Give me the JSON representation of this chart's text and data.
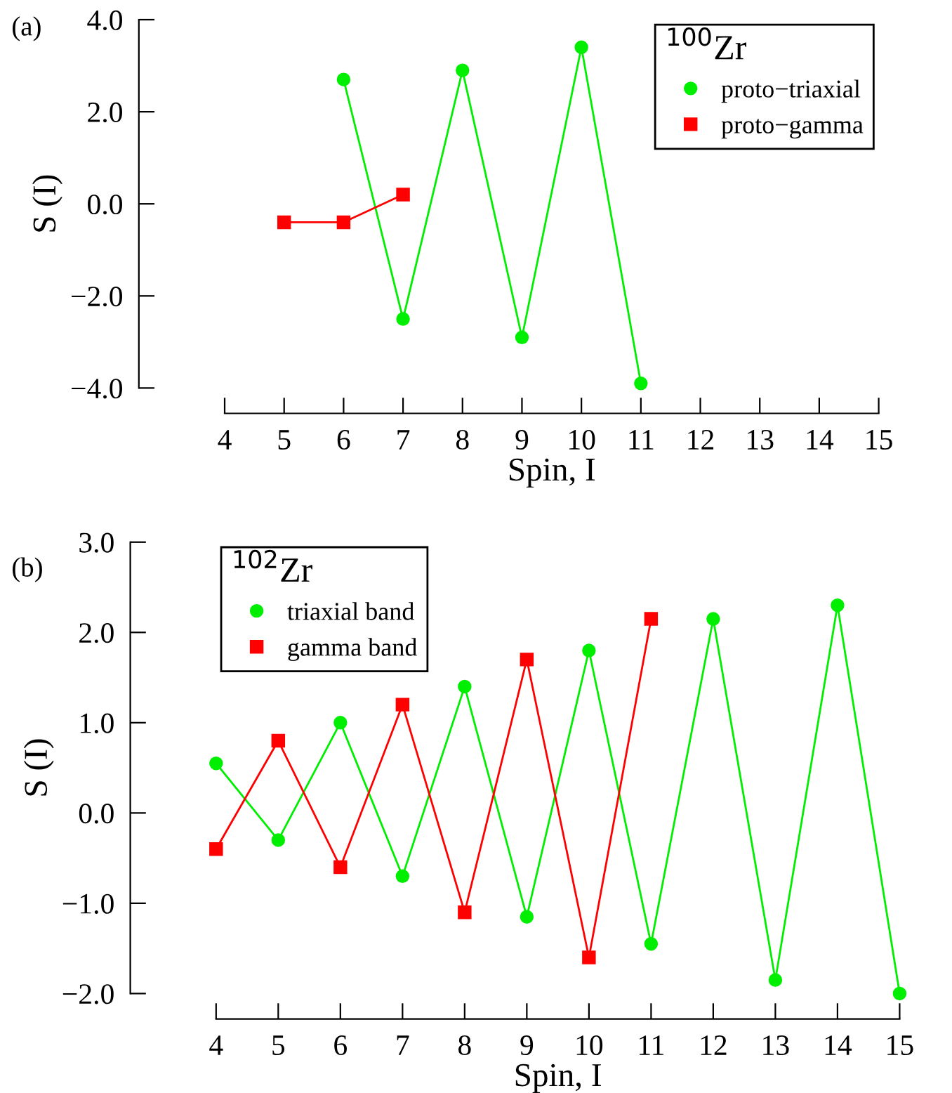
{
  "chart_data": [
    {
      "type": "line",
      "xlabel": "Spin, I",
      "ylabel": "S (I)",
      "legend_title": "$^{100}$Zr",
      "annotations": [
        "(a)"
      ],
      "legend": "top right",
      "grid": false,
      "xlim": [
        4,
        15
      ],
      "xticks": [
        4,
        5,
        6,
        7,
        8,
        9,
        10,
        11,
        12,
        13,
        14,
        15
      ],
      "ylim": [
        -4,
        4
      ],
      "yticks": [
        {
          "value": -4,
          "label": "−4.0"
        },
        {
          "value": -2,
          "label": "−2.0"
        },
        {
          "value": 0,
          "label": "0.0"
        },
        {
          "value": 2,
          "label": "2.0"
        },
        {
          "value": 4,
          "label": "4.0"
        }
      ],
      "series": [
        {
          "name": "proto−triaxial",
          "color": "#00ee00",
          "marker": "circle",
          "x": [
            6,
            7,
            8,
            9,
            10,
            11
          ],
          "values": [
            2.7,
            -2.5,
            2.9,
            -2.9,
            3.4,
            -3.9
          ]
        },
        {
          "name": "proto−gamma",
          "color": "#ff0000",
          "marker": "square",
          "x": [
            5,
            6,
            7
          ],
          "values": [
            -0.4,
            -0.4,
            0.2
          ]
        }
      ]
    },
    {
      "type": "line",
      "xlabel": "Spin, I",
      "ylabel": "S (I)",
      "legend_title": "$^{102}$Zr",
      "annotations": [
        "(b)"
      ],
      "legend": "top left",
      "grid": false,
      "xlim": [
        4,
        15
      ],
      "xticks": [
        4,
        5,
        6,
        7,
        8,
        9,
        10,
        11,
        12,
        13,
        14,
        15
      ],
      "ylim": [
        -2,
        3
      ],
      "yticks": [
        {
          "value": -2,
          "label": "−2.0"
        },
        {
          "value": -1,
          "label": "−1.0"
        },
        {
          "value": 0,
          "label": "0.0"
        },
        {
          "value": 1,
          "label": "1.0"
        },
        {
          "value": 2,
          "label": "2.0"
        },
        {
          "value": 3,
          "label": "3.0"
        }
      ],
      "series": [
        {
          "name": "triaxial band",
          "color": "#00ee00",
          "marker": "circle",
          "x": [
            4,
            5,
            6,
            7,
            8,
            9,
            10,
            11,
            12,
            13,
            14,
            15
          ],
          "values": [
            0.55,
            -0.3,
            1.0,
            -0.7,
            1.4,
            -1.15,
            1.8,
            -1.45,
            2.15,
            -1.85,
            2.3,
            -2.0
          ]
        },
        {
          "name": "gamma band",
          "color": "#ff0000",
          "marker": "square",
          "x": [
            4,
            5,
            6,
            7,
            8,
            9,
            10,
            11
          ],
          "values": [
            -0.4,
            0.8,
            -0.6,
            1.2,
            -1.1,
            1.7,
            -1.6,
            2.15
          ]
        }
      ]
    }
  ]
}
